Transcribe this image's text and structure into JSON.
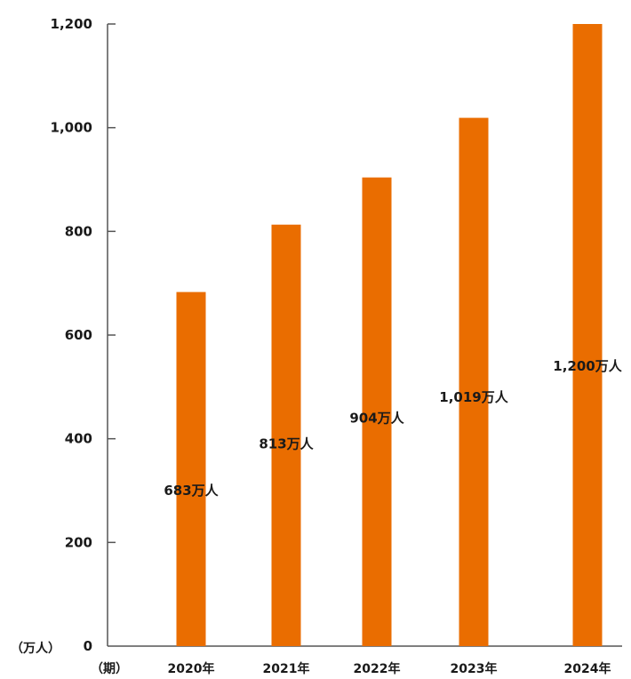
{
  "chart_data": {
    "type": "bar",
    "categories": [
      "2020年",
      "2021年",
      "2022年",
      "2023年",
      "2024年"
    ],
    "values": [
      683,
      813,
      904,
      1019,
      1200
    ],
    "data_labels": [
      "683万人",
      "813万人",
      "904万人",
      "1,019万人",
      "1,200万人"
    ],
    "y_ticks": [
      0,
      200,
      400,
      600,
      800,
      1000,
      1200
    ],
    "y_tick_labels": [
      "0",
      "200",
      "400",
      "600",
      "800",
      "1,000",
      "1,200"
    ],
    "ylim": [
      0,
      1200
    ],
    "y_unit": "（万人）",
    "x_unit": "（期）",
    "bar_color": "#EA6D00",
    "axis_color": "#555555",
    "grid": false
  }
}
